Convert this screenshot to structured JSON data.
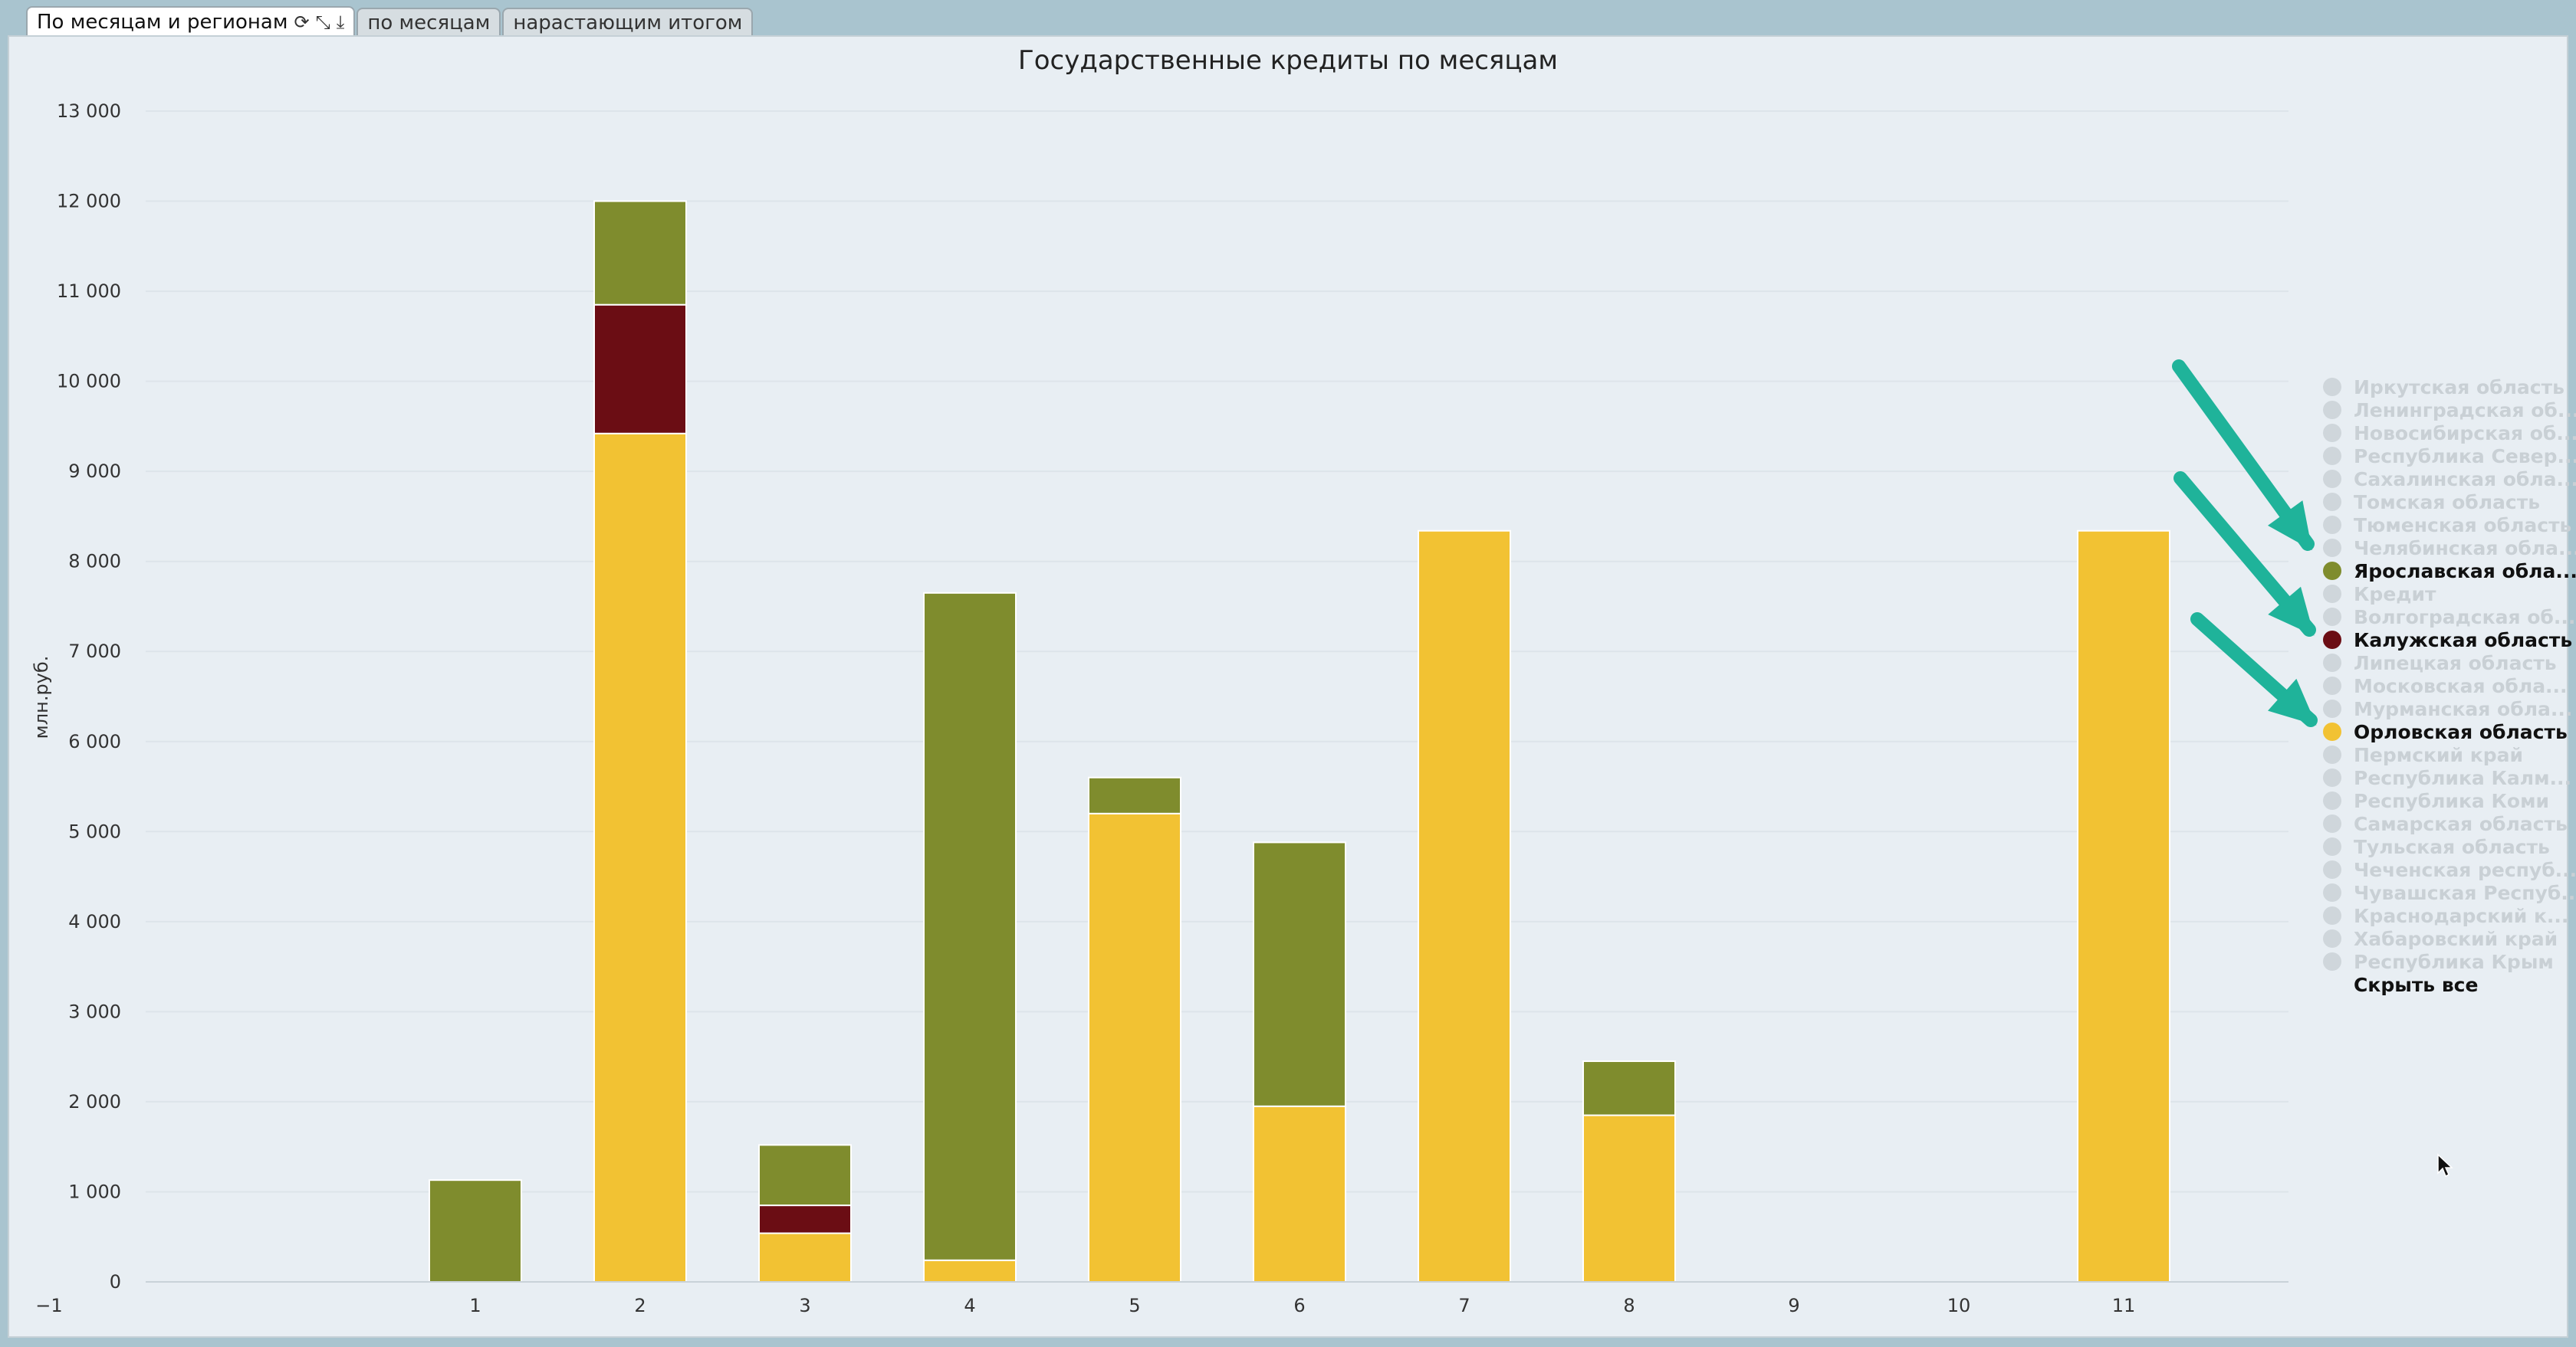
{
  "tabs": [
    {
      "label": "По месяцам и регионам",
      "active": true
    },
    {
      "label": "по месяцам",
      "active": false
    },
    {
      "label": "нарастающим итогом",
      "active": false
    }
  ],
  "tab_icons": [
    "refresh-icon",
    "collapse-icon",
    "download-icon"
  ],
  "colors": {
    "yaroslavl": "#7f8c2d",
    "kaluga": "#6b0d14",
    "orel": "#f2c233",
    "inactive": "#cfd6db",
    "arrow": "#1fb39a"
  },
  "chart_data": {
    "type": "bar",
    "stacked": true,
    "title": "Государственные кредиты по месяцам",
    "xlabel": "",
    "ylabel": "млн.руб.",
    "ylim": [
      0,
      13000
    ],
    "yticks": [
      0,
      1000,
      2000,
      3000,
      4000,
      5000,
      6000,
      7000,
      8000,
      9000,
      10000,
      11000,
      12000,
      13000
    ],
    "ytick_labels": [
      "0",
      "1 000",
      "2 000",
      "3 000",
      "4 000",
      "5 000",
      "6 000",
      "7 000",
      "8 000",
      "9 000",
      "10 000",
      "11 000",
      "12 000",
      "13 000"
    ],
    "xlim": [
      -1,
      12
    ],
    "x_tick_labels": [
      "−1",
      "1",
      "2",
      "3",
      "4",
      "5",
      "6",
      "7",
      "8",
      "9",
      "10",
      "11"
    ],
    "categories": [
      1,
      2,
      3,
      4,
      5,
      6,
      7,
      8,
      9,
      10,
      11
    ],
    "series": [
      {
        "name": "Орловская область",
        "color": "#f2c233",
        "values": [
          0,
          9420,
          540,
          240,
          5200,
          1950,
          8340,
          1850,
          0,
          0,
          8340
        ]
      },
      {
        "name": "Калужская область",
        "color": "#6b0d14",
        "values": [
          0,
          1430,
          310,
          0,
          0,
          0,
          0,
          0,
          0,
          0,
          0
        ]
      },
      {
        "name": "Ярославская область",
        "color": "#7f8c2d",
        "values": [
          1130,
          1150,
          670,
          7410,
          400,
          2930,
          0,
          600,
          0,
          0,
          0
        ]
      }
    ],
    "legend": {
      "placement": "right",
      "items": [
        {
          "label": "Иркутская область",
          "active": false
        },
        {
          "label": "Ленинградская об...",
          "active": false
        },
        {
          "label": "Новосибирская об...",
          "active": false
        },
        {
          "label": "Республика Север...",
          "active": false
        },
        {
          "label": "Сахалинская обла...",
          "active": false
        },
        {
          "label": "Томская область",
          "active": false
        },
        {
          "label": "Тюменская область",
          "active": false
        },
        {
          "label": "Челябинская обла...",
          "active": false
        },
        {
          "label": "Ярославская обла...",
          "active": true,
          "color": "#7f8c2d"
        },
        {
          "label": "Кредит",
          "active": false
        },
        {
          "label": "Волгоградская об...",
          "active": false
        },
        {
          "label": "Калужская область",
          "active": true,
          "color": "#6b0d14"
        },
        {
          "label": "Липецкая область",
          "active": false
        },
        {
          "label": "Московская обла...",
          "active": false
        },
        {
          "label": "Мурманская обла...",
          "active": false
        },
        {
          "label": "Орловская область",
          "active": true,
          "color": "#f2c233"
        },
        {
          "label": "Пермский край",
          "active": false
        },
        {
          "label": "Республика Калм...",
          "active": false
        },
        {
          "label": "Республика Коми",
          "active": false
        },
        {
          "label": "Самарская область",
          "active": false
        },
        {
          "label": "Тульская область",
          "active": false
        },
        {
          "label": "Чеченская респуб...",
          "active": false
        },
        {
          "label": "Чувашская Респуб...",
          "active": false
        },
        {
          "label": "Краснодарский к...",
          "active": false
        },
        {
          "label": "Хабаровский край",
          "active": false
        },
        {
          "label": "Республика Крым",
          "active": false
        }
      ],
      "hide_all_label": "Скрыть все"
    }
  }
}
